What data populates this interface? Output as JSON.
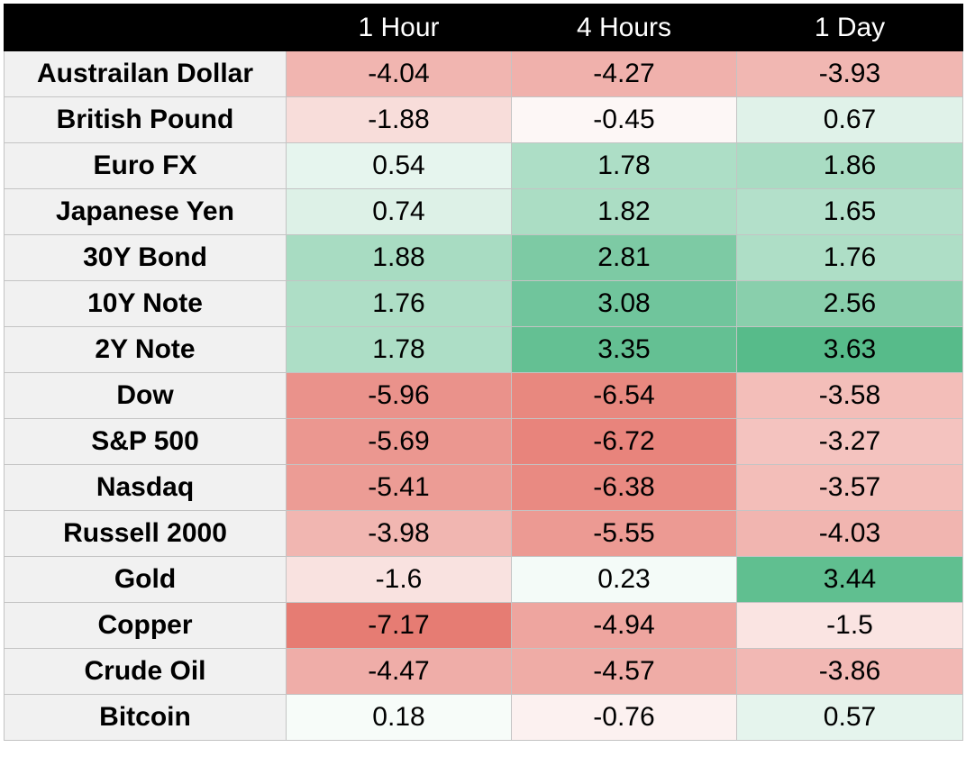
{
  "chart_data": {
    "type": "heatmap",
    "columns": [
      "1 Hour",
      "4 Hours",
      "1 Day"
    ],
    "rows": [
      {
        "label": "Austrailan Dollar",
        "values": [
          "-4.04",
          "-4.27",
          "-3.93"
        ]
      },
      {
        "label": "British Pound",
        "values": [
          "-1.88",
          "-0.45",
          "0.67"
        ]
      },
      {
        "label": "Euro FX",
        "values": [
          "0.54",
          "1.78",
          "1.86"
        ]
      },
      {
        "label": "Japanese Yen",
        "values": [
          "0.74",
          "1.82",
          "1.65"
        ]
      },
      {
        "label": "30Y Bond",
        "values": [
          "1.88",
          "2.81",
          "1.76"
        ]
      },
      {
        "label": "10Y Note",
        "values": [
          "1.76",
          "3.08",
          "2.56"
        ]
      },
      {
        "label": "2Y Note",
        "values": [
          "1.78",
          "3.35",
          "3.63"
        ]
      },
      {
        "label": "Dow",
        "values": [
          "-5.96",
          "-6.54",
          "-3.58"
        ]
      },
      {
        "label": "S&P 500",
        "values": [
          "-5.69",
          "-6.72",
          "-3.27"
        ]
      },
      {
        "label": "Nasdaq",
        "values": [
          "-5.41",
          "-6.38",
          "-3.57"
        ]
      },
      {
        "label": "Russell 2000",
        "values": [
          "-3.98",
          "-5.55",
          "-4.03"
        ]
      },
      {
        "label": "Gold",
        "values": [
          "-1.6",
          "0.23",
          "3.44"
        ]
      },
      {
        "label": "Copper",
        "values": [
          "-7.17",
          "-4.94",
          "-1.5"
        ]
      },
      {
        "label": "Crude Oil",
        "values": [
          "-4.47",
          "-4.57",
          "-3.86"
        ]
      },
      {
        "label": "Bitcoin",
        "values": [
          "0.18",
          "-0.76",
          "0.57"
        ]
      }
    ],
    "color_scale": {
      "negative_max": "#e67c73",
      "neutral": "#ffffff",
      "positive_max": "#57bb8a"
    },
    "header_background": "#000000",
    "header_text_color": "#ffffff",
    "label_background": "#f1f1f1",
    "grid_color": "#c4c4c4"
  }
}
